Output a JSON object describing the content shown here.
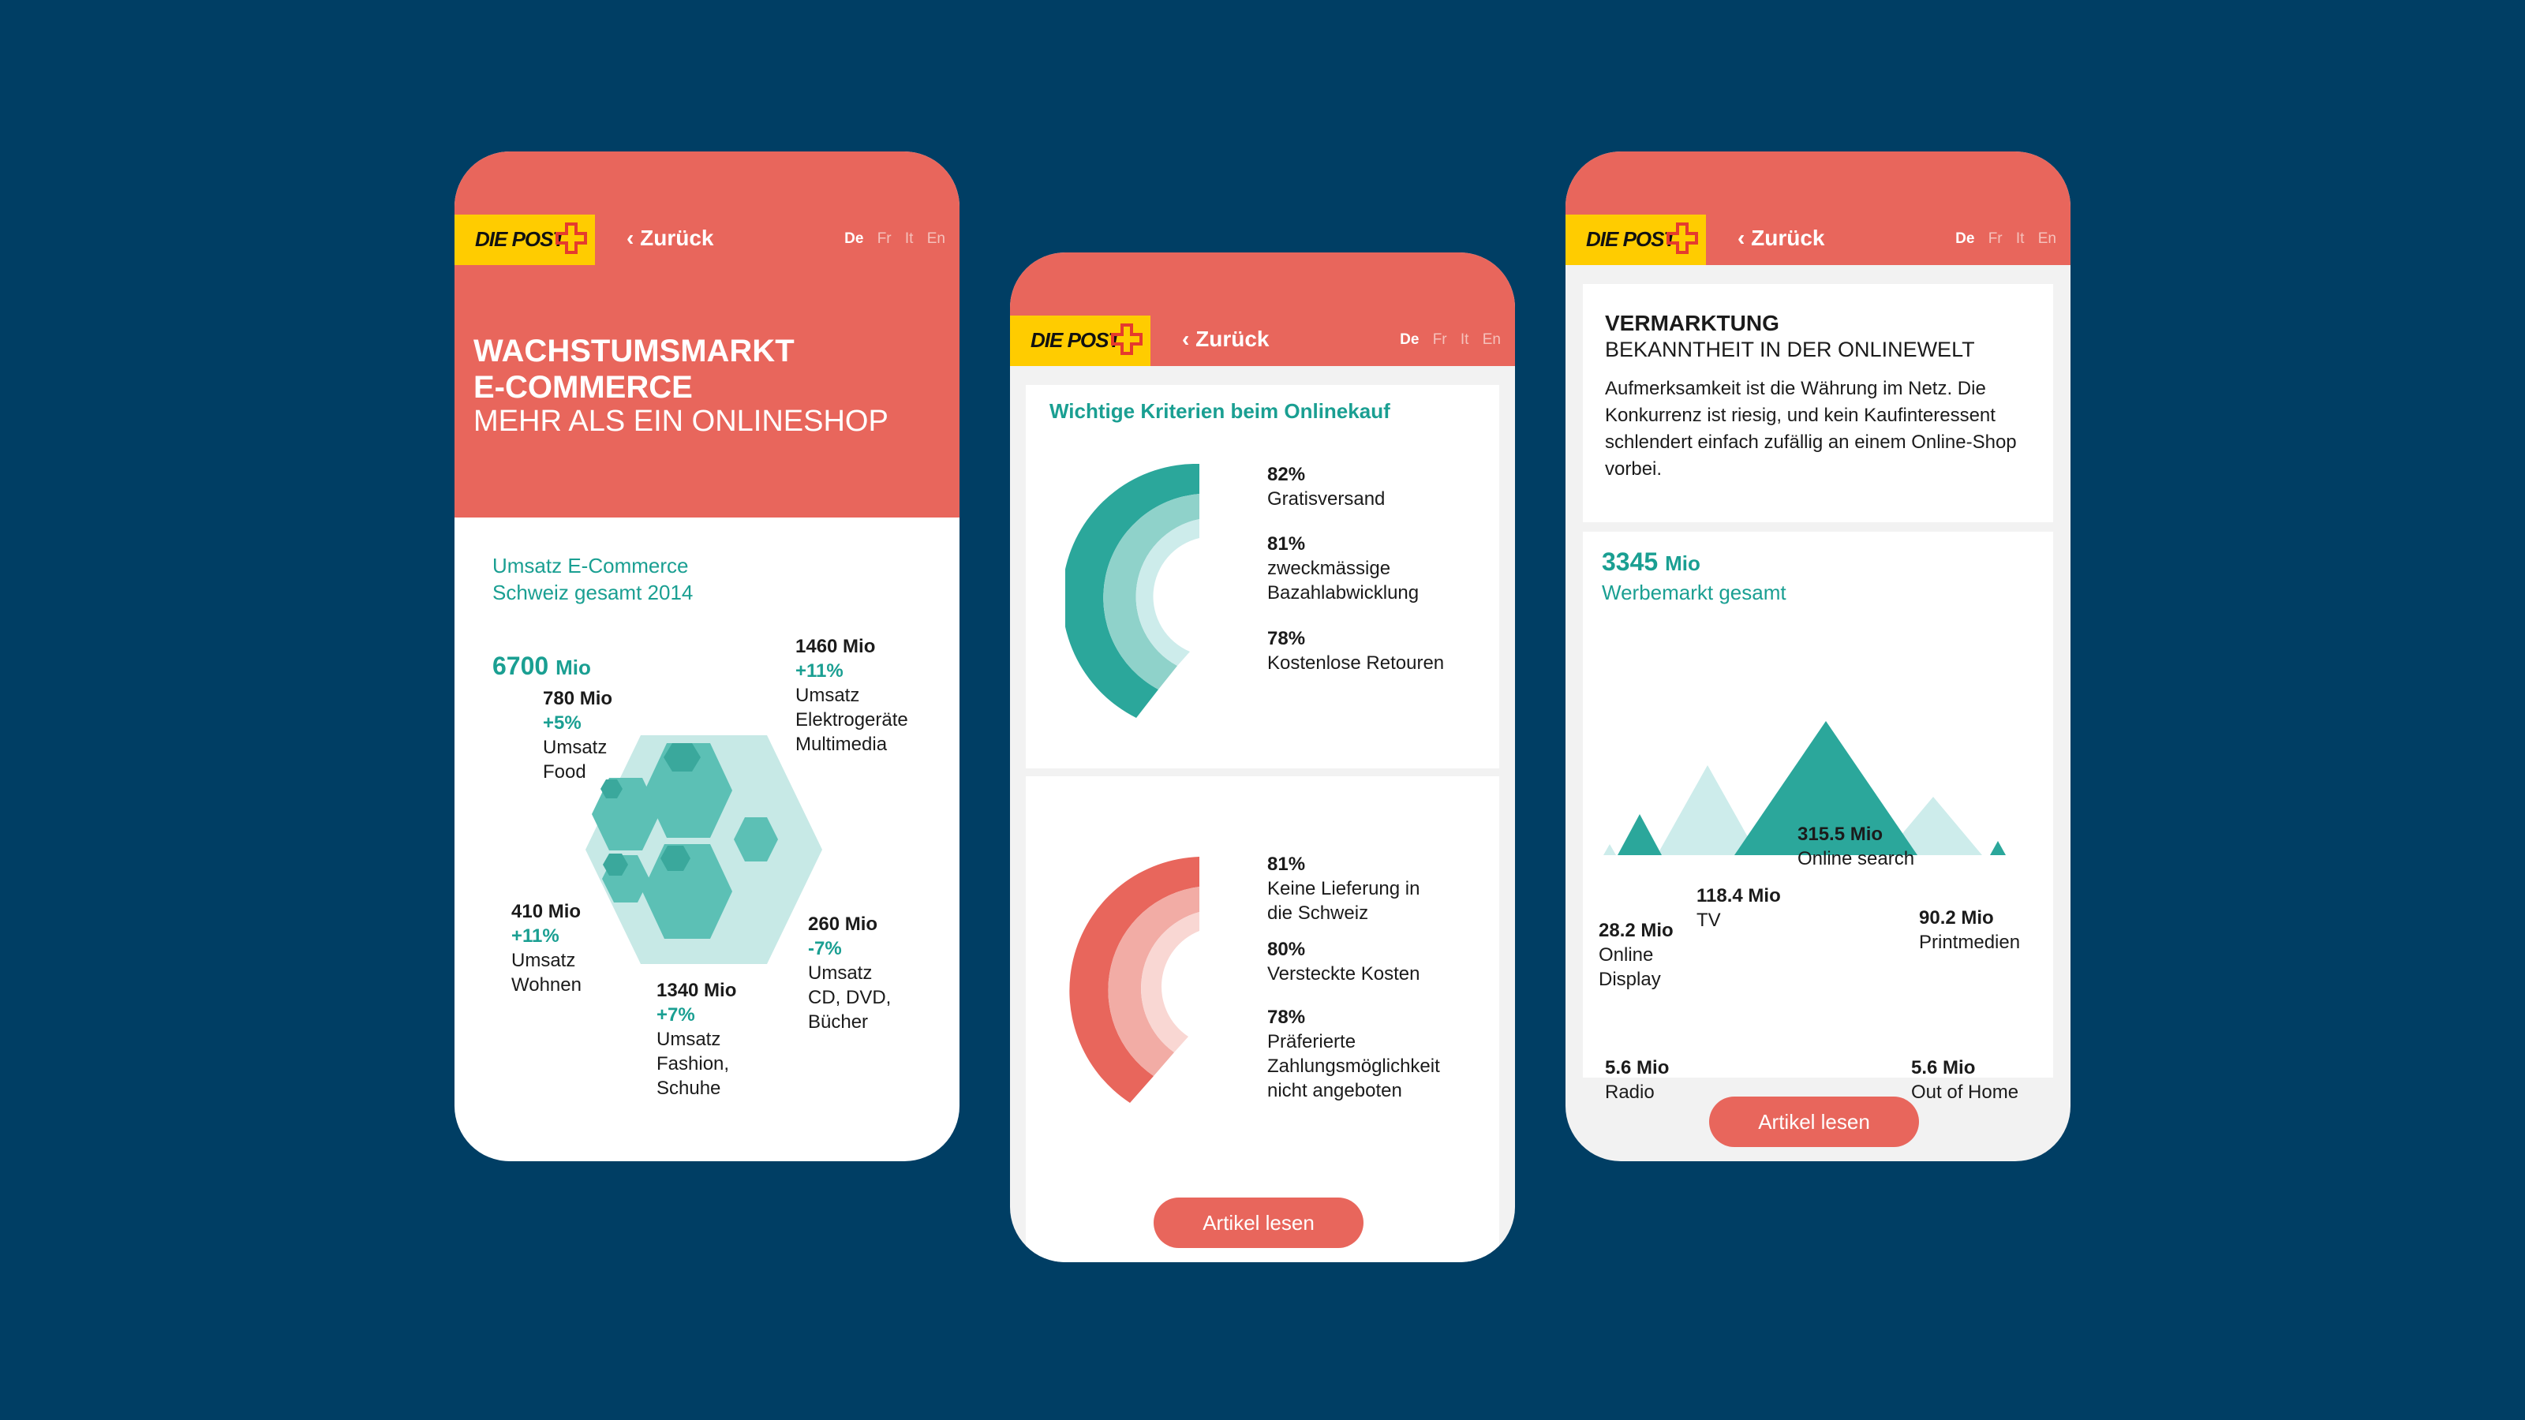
{
  "brand": {
    "logo_text": "DIE POST",
    "accent": "#e8665c",
    "teal": "#1a9f92",
    "yellow": "#ffcc00",
    "background": "#003e64"
  },
  "nav": {
    "back_label": "Zurück",
    "languages": [
      "De",
      "Fr",
      "It",
      "En"
    ],
    "active_language": "De"
  },
  "phone1": {
    "title_line1": "WACHSTUMSMARKT",
    "title_line2": "E-COMMERCE",
    "subtitle": "MEHR ALS EIN ONLINESHOP",
    "section_line1": "Umsatz E-Commerce",
    "section_line2": "Schweiz gesamt 2014",
    "total_value": "6700",
    "total_unit": "Mio",
    "segments": [
      {
        "value": "780 Mio",
        "change": "+5%",
        "label_lines": [
          "Umsatz",
          "Food"
        ]
      },
      {
        "value": "1460 Mio",
        "change": "+11%",
        "label_lines": [
          "Umsatz",
          "Elektrogeräte",
          "Multimedia"
        ]
      },
      {
        "value": "410 Mio",
        "change": "+11%",
        "label_lines": [
          "Umsatz",
          "Wohnen"
        ]
      },
      {
        "value": "1340 Mio",
        "change": "+7%",
        "label_lines": [
          "Umsatz",
          "Fashion,",
          "Schuhe"
        ]
      },
      {
        "value": "260 Mio",
        "change": "-7%",
        "label_lines": [
          "Umsatz",
          "CD, DVD,",
          "Bücher"
        ]
      }
    ]
  },
  "phone2": {
    "heading": "Wichtige Kriterien beim Onlinekauf",
    "positive": [
      {
        "percent": "82%",
        "label_lines": [
          "Gratisversand"
        ]
      },
      {
        "percent": "81%",
        "label_lines": [
          "zweckmässige",
          "Bazahlabwicklung"
        ]
      },
      {
        "percent": "78%",
        "label_lines": [
          "Kostenlose Retouren"
        ]
      }
    ],
    "negative": [
      {
        "percent": "81%",
        "label_lines": [
          "Keine Lieferung in",
          "die Schweiz"
        ]
      },
      {
        "percent": "80%",
        "label_lines": [
          "Versteckte Kosten"
        ]
      },
      {
        "percent": "78%",
        "label_lines": [
          "Präferierte",
          "Zahlungsmöglichkeit",
          "nicht angeboten"
        ]
      }
    ],
    "button_label": "Artikel lesen"
  },
  "phone3": {
    "heading": "VERMARKTUNG",
    "subheading": "BEKANNTHEIT IN DER ONLINEWELT",
    "body": "Aufmerksamkeit ist die Währung im Netz. Die Konkurrenz ist riesig, und kein Kaufinteressent schlendert einfach zufällig an einem Online-Shop vorbei.",
    "total_value": "3345",
    "total_unit": "Mio",
    "total_label": "Werbemarkt gesamt",
    "channels": [
      {
        "value": "315.5 Mio",
        "label_lines": [
          "Online search"
        ]
      },
      {
        "value": "118.4 Mio",
        "label_lines": [
          "TV"
        ]
      },
      {
        "value": "28.2 Mio",
        "label_lines": [
          "Online",
          "Display"
        ]
      },
      {
        "value": "90.2 Mio",
        "label_lines": [
          "Printmedien"
        ]
      },
      {
        "value": "5.6 Mio",
        "label_lines": [
          "Radio"
        ]
      },
      {
        "value": "5.6 Mio",
        "label_lines": [
          "Out of Home"
        ]
      }
    ],
    "button_label": "Artikel lesen"
  }
}
